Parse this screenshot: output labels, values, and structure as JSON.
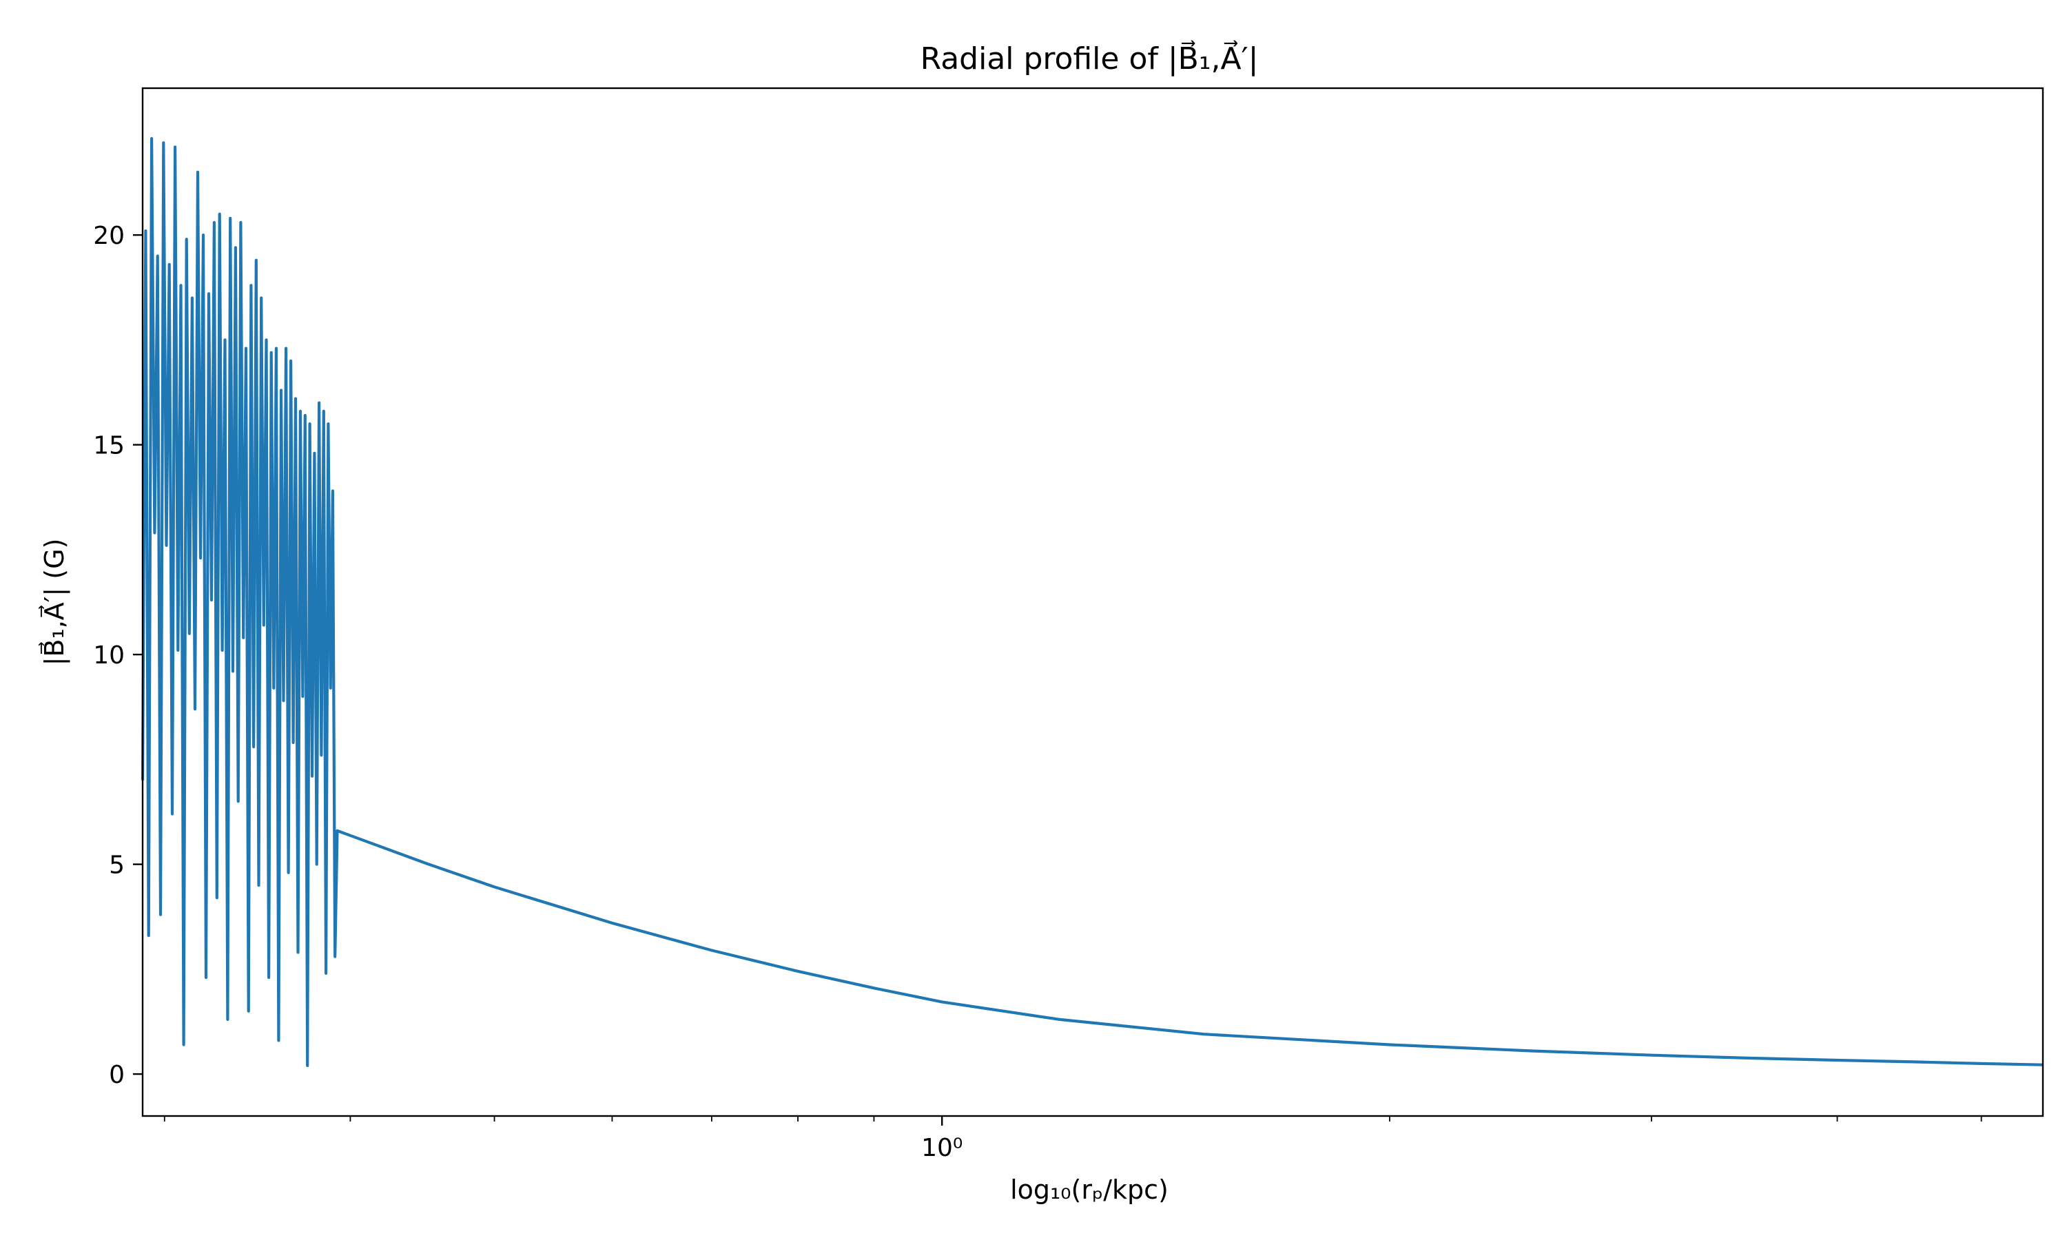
{
  "chart_data": {
    "type": "line",
    "title": "Radial profile of |B⃗₁,A⃗′|",
    "xlabel": "log₁₀(rₚ/kpc)",
    "ylabel": "|B⃗₁,A⃗′| (G)",
    "x_scale": "log",
    "xlim": [
      0.29,
      5.5
    ],
    "ylim": [
      -1,
      23.5
    ],
    "grid": false,
    "x_ticks": [
      {
        "value": 1,
        "label": "10⁰"
      }
    ],
    "y_ticks": [
      {
        "value": 0,
        "label": "0"
      },
      {
        "value": 5,
        "label": "5"
      },
      {
        "value": 10,
        "label": "10"
      },
      {
        "value": 15,
        "label": "15"
      },
      {
        "value": 20,
        "label": "20"
      }
    ],
    "series": [
      {
        "color": "#1f77b4",
        "noisy_segment": {
          "x_start": 0.29,
          "x_end": 0.392,
          "values": [
            7.0,
            20.1,
            3.3,
            22.3,
            12.9,
            19.5,
            3.8,
            22.2,
            12.6,
            19.3,
            6.2,
            22.1,
            10.1,
            18.8,
            0.7,
            19.9,
            10.5,
            18.5,
            8.7,
            21.5,
            12.3,
            20.0,
            2.3,
            18.6,
            11.3,
            20.3,
            4.2,
            20.5,
            10.1,
            17.5,
            1.3,
            20.4,
            9.6,
            19.7,
            6.5,
            20.3,
            10.4,
            17.3,
            1.5,
            18.8,
            7.8,
            19.4,
            4.5,
            18.5,
            10.7,
            17.5,
            2.3,
            17.2,
            9.2,
            17.3,
            0.8,
            16.3,
            8.9,
            17.3,
            4.8,
            17.0,
            7.9,
            16.1,
            2.9,
            15.8,
            9.0,
            15.7,
            0.2,
            15.5,
            7.1,
            14.8,
            5.0,
            16.0,
            7.6,
            15.8,
            2.4,
            15.5,
            9.2,
            13.9,
            2.8,
            5.8
          ]
        },
        "smooth_segment": {
          "x": [
            0.392,
            0.45,
            0.5,
            0.6,
            0.7,
            0.8,
            0.9,
            1.0,
            1.2,
            1.5,
            2.0,
            2.5,
            3.0,
            3.5,
            4.0,
            4.5,
            5.0,
            5.5
          ],
          "y": [
            5.8,
            5.02,
            4.46,
            3.6,
            2.95,
            2.45,
            2.05,
            1.72,
            1.3,
            0.95,
            0.7,
            0.55,
            0.45,
            0.38,
            0.33,
            0.29,
            0.25,
            0.22
          ]
        }
      }
    ]
  }
}
